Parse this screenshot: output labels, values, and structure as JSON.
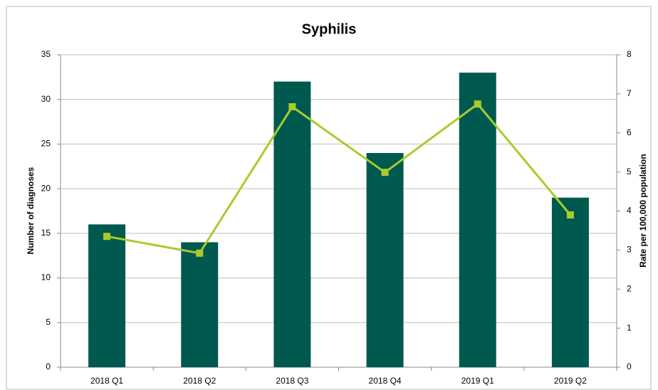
{
  "chart_data": {
    "type": "bar_line",
    "title": "Syphilis",
    "y_label": "Number of diagnoses",
    "y2_label": "Rate per 100,000 population",
    "categories": [
      "2018 Q1",
      "2018 Q2",
      "2018 Q3",
      "2018 Q4",
      "2019 Q1",
      "2019 Q2"
    ],
    "series": [
      {
        "type": "bar",
        "color": "#00594f",
        "values": [
          16,
          14,
          32,
          24,
          33,
          19
        ]
      },
      {
        "type": "line",
        "color": "#a9cc2c",
        "axis": "y2",
        "values": [
          3.35,
          2.92,
          6.67,
          4.99,
          6.74,
          3.9
        ]
      }
    ],
    "ylim": [
      0,
      35
    ],
    "yticks": [
      0,
      5,
      10,
      15,
      20,
      25,
      30,
      35
    ],
    "y2lim": [
      0,
      8
    ],
    "y2ticks": [
      0,
      1,
      2,
      3,
      4,
      5,
      6,
      7,
      8
    ],
    "grid": true
  }
}
